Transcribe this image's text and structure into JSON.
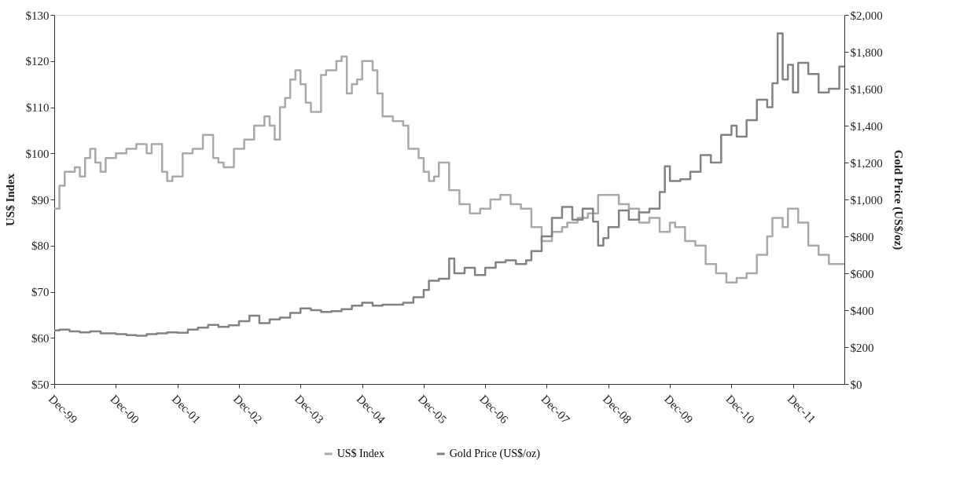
{
  "chart_data": {
    "type": "step",
    "xlabel": null,
    "ylabel": "US$ Index",
    "y2label": "Gold Price (US$/oz)",
    "xlim": [
      "1999-12",
      "2012-10"
    ],
    "xticks": [
      {
        "value": "1999-12",
        "label": "Dec-99"
      },
      {
        "value": "2000-12",
        "label": "Dec-00"
      },
      {
        "value": "2001-12",
        "label": "Dec-01"
      },
      {
        "value": "2002-12",
        "label": "Dec-02"
      },
      {
        "value": "2003-12",
        "label": "Dec-03"
      },
      {
        "value": "2004-12",
        "label": "Dec-04"
      },
      {
        "value": "2005-12",
        "label": "Dec-05"
      },
      {
        "value": "2006-12",
        "label": "Dec-06"
      },
      {
        "value": "2007-12",
        "label": "Dec-07"
      },
      {
        "value": "2008-12",
        "label": "Dec-08"
      },
      {
        "value": "2009-12",
        "label": "Dec-09"
      },
      {
        "value": "2010-12",
        "label": "Dec-10"
      },
      {
        "value": "2011-12",
        "label": "Dec-11"
      }
    ],
    "ylim": [
      50,
      130
    ],
    "yticks": [
      {
        "value": 50,
        "label": "$50"
      },
      {
        "value": 60,
        "label": "$60"
      },
      {
        "value": 70,
        "label": "$70"
      },
      {
        "value": 80,
        "label": "$80"
      },
      {
        "value": 90,
        "label": "$90"
      },
      {
        "value": 100,
        "label": "$100"
      },
      {
        "value": 110,
        "label": "$110"
      },
      {
        "value": 120,
        "label": "$120"
      },
      {
        "value": 130,
        "label": "$130"
      }
    ],
    "y2lim": [
      0,
      2000
    ],
    "y2ticks": [
      {
        "value": 0,
        "label": "$0"
      },
      {
        "value": 200,
        "label": "$200"
      },
      {
        "value": 400,
        "label": "$400"
      },
      {
        "value": 600,
        "label": "$600"
      },
      {
        "value": 800,
        "label": "$800"
      },
      {
        "value": 1000,
        "label": "$1,000"
      },
      {
        "value": 1200,
        "label": "$1,200"
      },
      {
        "value": 1400,
        "label": "$1,400"
      },
      {
        "value": 1600,
        "label": "$1,600"
      },
      {
        "value": 1800,
        "label": "$1,800"
      },
      {
        "value": 2000,
        "label": "$2,000"
      }
    ],
    "grid": false,
    "legend": "bottom",
    "marker": "none",
    "line_style": "solid",
    "series": [
      {
        "name": "US$ Index",
        "color": "#a7a9ac",
        "x": [
          "1999-12",
          "2000-01",
          "2000-02",
          "2000-04",
          "2000-05",
          "2000-06",
          "2000-07",
          "2000-08",
          "2000-09",
          "2000-10",
          "2000-12",
          "2001-02",
          "2001-04",
          "2001-06",
          "2001-07",
          "2001-09",
          "2001-10",
          "2001-11",
          "2002-01",
          "2002-03",
          "2002-05",
          "2002-07",
          "2002-08",
          "2002-09",
          "2002-11",
          "2003-01",
          "2003-03",
          "2003-05",
          "2003-06",
          "2003-07",
          "2003-08",
          "2003-09",
          "2003-10",
          "2003-11",
          "2003-12",
          "2004-01",
          "2004-02",
          "2004-04",
          "2004-05",
          "2004-07",
          "2004-08",
          "2004-09",
          "2004-10",
          "2004-11",
          "2004-12",
          "2005-02",
          "2005-03",
          "2005-04",
          "2005-06",
          "2005-08",
          "2005-09",
          "2005-11",
          "2005-12",
          "2006-01",
          "2006-02",
          "2006-03",
          "2006-05",
          "2006-07",
          "2006-09",
          "2006-11",
          "2007-01",
          "2007-03",
          "2007-05",
          "2007-07",
          "2007-09",
          "2007-11",
          "2008-01",
          "2008-03",
          "2008-04",
          "2008-06",
          "2008-08",
          "2008-10",
          "2008-12",
          "2009-02",
          "2009-04",
          "2009-06",
          "2009-08",
          "2009-10",
          "2009-12",
          "2010-01",
          "2010-03",
          "2010-05",
          "2010-07",
          "2010-09",
          "2010-11",
          "2011-01",
          "2011-03",
          "2011-05",
          "2011-07",
          "2011-08",
          "2011-10",
          "2011-11",
          "2012-01",
          "2012-03",
          "2012-05",
          "2012-07",
          "2012-10"
        ],
        "values": [
          88,
          93,
          96,
          97,
          95,
          99,
          101,
          98,
          96,
          99,
          100,
          101,
          102,
          100,
          102,
          96,
          94,
          95,
          100,
          101,
          104,
          99,
          98,
          97,
          101,
          103,
          106,
          108,
          106,
          103,
          110,
          112,
          116,
          118,
          115,
          111,
          109,
          117,
          118,
          120,
          121,
          113,
          115,
          116,
          120,
          118,
          113,
          108,
          107,
          106,
          101,
          99,
          96,
          94,
          95,
          98,
          92,
          89,
          87,
          88,
          90,
          91,
          89,
          88,
          84,
          81,
          83,
          84,
          85,
          86,
          87,
          91,
          91,
          89,
          88,
          85,
          86,
          83,
          85,
          84,
          81,
          80,
          76,
          74,
          72,
          73,
          74,
          78,
          82,
          86,
          84,
          88,
          85,
          80,
          78,
          76,
          76
        ]
      },
      {
        "name": "Gold Price (US$/oz)",
        "color": "#808285",
        "axis": "y2",
        "x": [
          "1999-12",
          "2000-01",
          "2000-03",
          "2000-05",
          "2000-07",
          "2000-09",
          "2000-12",
          "2001-02",
          "2001-04",
          "2001-06",
          "2001-08",
          "2001-10",
          "2001-12",
          "2002-02",
          "2002-04",
          "2002-06",
          "2002-08",
          "2002-10",
          "2002-12",
          "2003-02",
          "2003-04",
          "2003-06",
          "2003-08",
          "2003-10",
          "2003-12",
          "2004-02",
          "2004-04",
          "2004-06",
          "2004-08",
          "2004-10",
          "2004-12",
          "2005-02",
          "2005-04",
          "2005-06",
          "2005-08",
          "2005-10",
          "2005-12",
          "2006-01",
          "2006-03",
          "2006-05",
          "2006-06",
          "2006-08",
          "2006-10",
          "2006-12",
          "2007-02",
          "2007-04",
          "2007-06",
          "2007-08",
          "2007-09",
          "2007-11",
          "2008-01",
          "2008-03",
          "2008-05",
          "2008-07",
          "2008-09",
          "2008-10",
          "2008-11",
          "2008-12",
          "2009-02",
          "2009-04",
          "2009-06",
          "2009-08",
          "2009-10",
          "2009-11",
          "2009-12",
          "2010-02",
          "2010-04",
          "2010-06",
          "2010-08",
          "2010-10",
          "2010-12",
          "2011-01",
          "2011-03",
          "2011-05",
          "2011-07",
          "2011-08",
          "2011-09",
          "2011-10",
          "2011-11",
          "2011-12",
          "2012-01",
          "2012-03",
          "2012-05",
          "2012-07",
          "2012-09",
          "2012-10"
        ],
        "values": [
          290,
          295,
          285,
          280,
          285,
          275,
          270,
          265,
          262,
          270,
          275,
          280,
          278,
          295,
          305,
          320,
          310,
          318,
          340,
          370,
          330,
          350,
          360,
          385,
          410,
          400,
          390,
          395,
          405,
          425,
          440,
          425,
          430,
          430,
          440,
          470,
          510,
          560,
          570,
          680,
          600,
          630,
          590,
          630,
          660,
          670,
          650,
          670,
          720,
          800,
          900,
          960,
          890,
          950,
          880,
          750,
          790,
          850,
          940,
          890,
          930,
          950,
          1040,
          1180,
          1100,
          1110,
          1150,
          1240,
          1200,
          1350,
          1400,
          1340,
          1430,
          1540,
          1500,
          1630,
          1900,
          1650,
          1730,
          1580,
          1740,
          1680,
          1580,
          1600,
          1720,
          1720
        ]
      }
    ]
  }
}
